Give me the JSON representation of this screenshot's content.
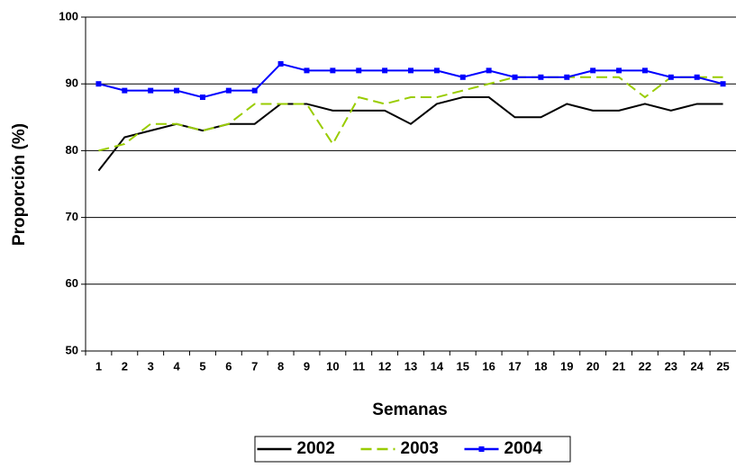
{
  "chart_data": {
    "type": "line",
    "x_label": "Semanas",
    "y_label": "Proporción (%)",
    "categories": [
      "1",
      "2",
      "3",
      "4",
      "5",
      "6",
      "7",
      "8",
      "9",
      "10",
      "11",
      "12",
      "13",
      "14",
      "15",
      "16",
      "17",
      "18",
      "19",
      "20",
      "21",
      "22",
      "23",
      "24",
      "25"
    ],
    "series": [
      {
        "name": "2002",
        "color": "#000000",
        "dash": false,
        "markers": false,
        "values": [
          77,
          82,
          83,
          84,
          83,
          84,
          84,
          87,
          87,
          86,
          86,
          86,
          84,
          87,
          88,
          88,
          85,
          85,
          87,
          86,
          86,
          87,
          86,
          87,
          87
        ]
      },
      {
        "name": "2003",
        "color": "#99cc00",
        "dash": true,
        "markers": false,
        "values": [
          80,
          81,
          84,
          84,
          83,
          84,
          87,
          87,
          87,
          81,
          88,
          87,
          88,
          88,
          89,
          90,
          91,
          91,
          91,
          91,
          91,
          88,
          91,
          91,
          91
        ]
      },
      {
        "name": "2004",
        "color": "#0000ff",
        "dash": false,
        "markers": true,
        "values": [
          90,
          89,
          89,
          89,
          88,
          89,
          89,
          93,
          92,
          92,
          92,
          92,
          92,
          92,
          91,
          92,
          91,
          91,
          91,
          92,
          92,
          92,
          91,
          91,
          90
        ]
      }
    ],
    "ylim": [
      50,
      100
    ],
    "yticks": [
      50,
      60,
      70,
      80,
      90,
      100
    ],
    "grid": true,
    "legend": "bottom"
  }
}
